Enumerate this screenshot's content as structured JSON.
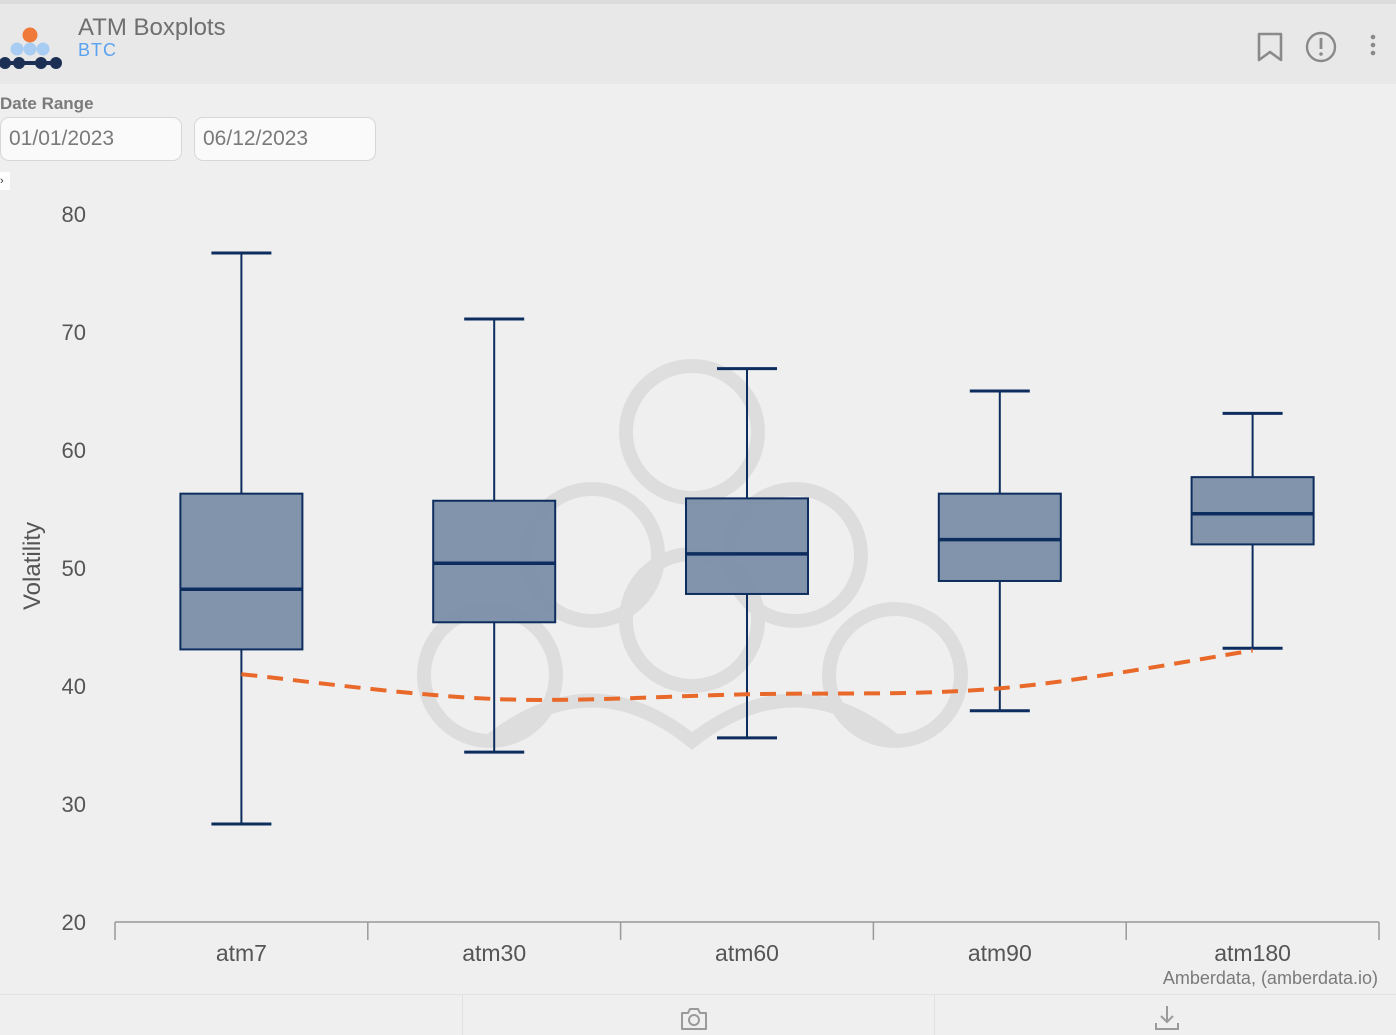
{
  "header": {
    "title": "ATM Boxplots",
    "subtitle": "BTC",
    "icons": [
      "bookmark-icon",
      "info-icon",
      "more-vert-icon"
    ]
  },
  "filters": {
    "date_range_label": "Date Range",
    "start_date": "01/01/2023",
    "end_date": "06/12/2023"
  },
  "colors": {
    "box_fill": "#7b8ea8",
    "box_stroke": "#0d2d5e",
    "median_line": "#0d2d5e",
    "dashed_line": "#e8692a",
    "axis_text": "#555555"
  },
  "chart_data": {
    "type": "box",
    "categories": [
      "atm7",
      "atm30",
      "atm60",
      "atm90",
      "atm180"
    ],
    "boxes": [
      {
        "min": 28.3,
        "q1": 43.1,
        "median": 48.2,
        "q3": 56.3,
        "max": 76.7
      },
      {
        "min": 34.4,
        "q1": 45.4,
        "median": 50.4,
        "q3": 55.7,
        "max": 71.1
      },
      {
        "min": 35.6,
        "q1": 47.8,
        "median": 51.2,
        "q3": 55.9,
        "max": 66.9
      },
      {
        "min": 37.9,
        "q1": 48.9,
        "median": 52.4,
        "q3": 56.3,
        "max": 65.0
      },
      {
        "min": 43.2,
        "q1": 52.0,
        "median": 54.6,
        "q3": 57.7,
        "max": 63.1
      }
    ],
    "overlay_line": {
      "style": "dashed",
      "values": [
        41.0,
        38.9,
        39.3,
        39.8,
        43.0
      ]
    },
    "ylabel": "Volatility",
    "xlabel": "",
    "ylim": [
      20,
      80
    ],
    "yticks": [
      20,
      30,
      40,
      50,
      60,
      70,
      80
    ],
    "grid": false,
    "source_note": "Amberdata, (amberdata.io)"
  },
  "footer": {
    "icons": [
      "camera-icon",
      "download-icon"
    ]
  }
}
